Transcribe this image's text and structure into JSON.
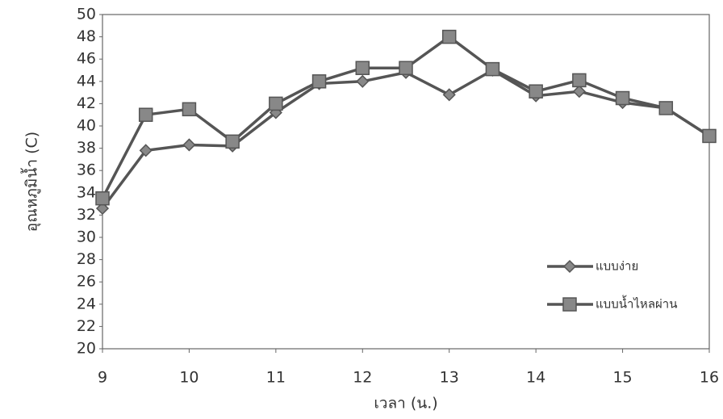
{
  "chart_data": {
    "type": "line",
    "x_label": "เวลา (น.)",
    "y_label": "อุณหภูมิน้ำ (C)",
    "x": [
      9,
      9.5,
      10,
      10.5,
      11,
      11.5,
      12,
      12.5,
      13,
      13.5,
      14,
      14.5,
      15,
      15.5,
      16
    ],
    "series": [
      {
        "name": "แบบง่าย",
        "color": "#555555",
        "marker": "diamond",
        "values": [
          32.6,
          37.8,
          38.3,
          38.2,
          41.2,
          43.8,
          44.0,
          44.8,
          42.8,
          45.0,
          42.7,
          43.1,
          42.1,
          41.6,
          39.1
        ]
      },
      {
        "name": "แบบน้ำไหลผ่าน",
        "color": "#555555",
        "marker": "square",
        "values": [
          33.5,
          41.0,
          41.5,
          38.6,
          42.0,
          44.0,
          45.2,
          45.2,
          48.0,
          45.1,
          43.1,
          44.1,
          42.5,
          41.6,
          39.1
        ]
      }
    ],
    "xlim": [
      9,
      16
    ],
    "xticks": [
      9,
      10,
      11,
      12,
      13,
      14,
      15,
      16
    ],
    "ylim": [
      20,
      50
    ],
    "yticks": [
      20,
      22,
      24,
      26,
      28,
      30,
      32,
      34,
      36,
      38,
      40,
      42,
      44,
      46,
      48,
      50
    ],
    "grid": false,
    "legend": "right"
  }
}
